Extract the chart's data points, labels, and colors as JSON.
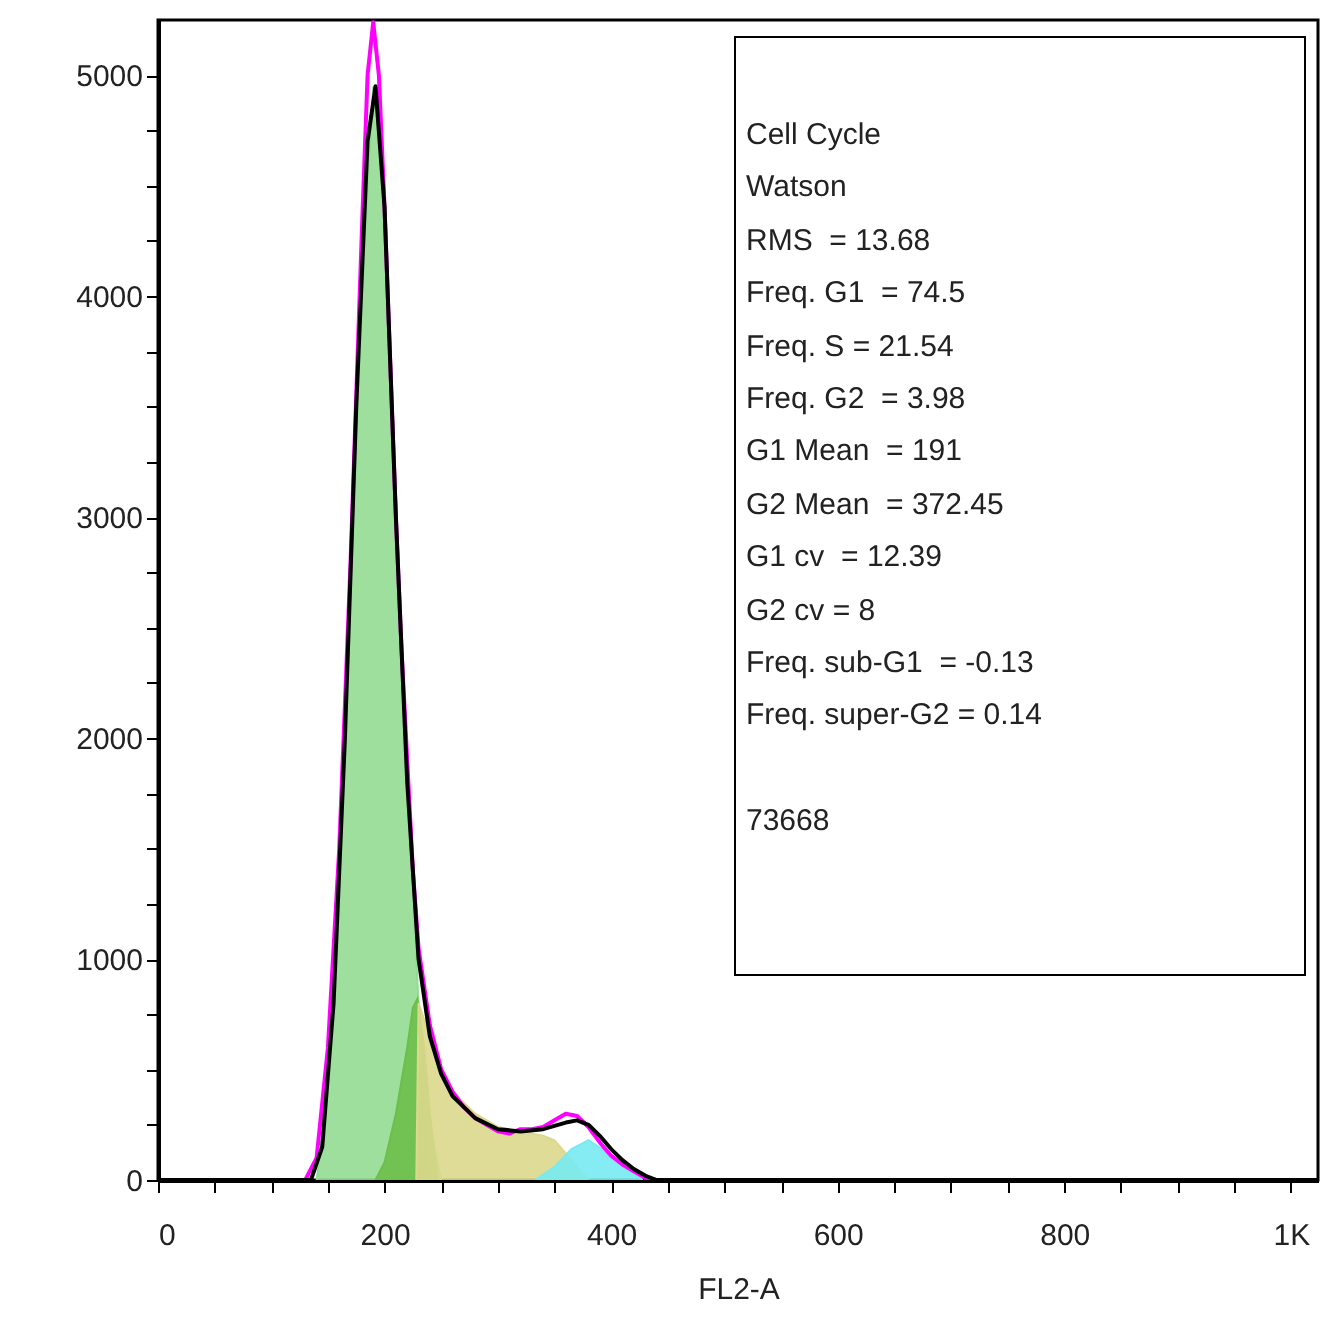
{
  "chart_data": {
    "type": "line",
    "xlabel": "FL2-A",
    "xlim": [
      0,
      1024
    ],
    "ylim": [
      0,
      5250
    ],
    "xticks": [
      0,
      {
        "value": 50,
        "label": null
      },
      {
        "value": 100,
        "label": null
      },
      {
        "value": 150,
        "label": null
      },
      200,
      {
        "value": 250,
        "label": null
      },
      {
        "value": 300,
        "label": null
      },
      {
        "value": 350,
        "label": null
      },
      400,
      {
        "value": 450,
        "label": null
      },
      {
        "value": 500,
        "label": null
      },
      {
        "value": 550,
        "label": null
      },
      600,
      {
        "value": 650,
        "label": null
      },
      {
        "value": 700,
        "label": null
      },
      {
        "value": 750,
        "label": null
      },
      800,
      {
        "value": 850,
        "label": null
      },
      {
        "value": 900,
        "label": null
      },
      {
        "value": 950,
        "label": null
      },
      {
        "value": 1000,
        "label": "1K"
      }
    ],
    "yticks": [
      0,
      {
        "value": 250,
        "label": null
      },
      {
        "value": 500,
        "label": null
      },
      {
        "value": 750,
        "label": null
      },
      1000,
      {
        "value": 1250,
        "label": null
      },
      {
        "value": 1500,
        "label": null
      },
      {
        "value": 1750,
        "label": null
      },
      2000,
      {
        "value": 2250,
        "label": null
      },
      {
        "value": 2500,
        "label": null
      },
      {
        "value": 2750,
        "label": null
      },
      3000,
      {
        "value": 3250,
        "label": null
      },
      {
        "value": 3500,
        "label": null
      },
      {
        "value": 3750,
        "label": null
      },
      4000,
      {
        "value": 4250,
        "label": null
      },
      {
        "value": 4500,
        "label": null
      },
      {
        "value": 4750,
        "label": null
      },
      5000
    ],
    "grid": false,
    "series": [
      {
        "type": "area",
        "color": "#93dc93",
        "x": [
          140,
          150,
          160,
          170,
          180,
          190,
          200,
          210,
          220,
          230,
          240,
          250
        ],
        "values": [
          0,
          400,
          1300,
          2600,
          4000,
          4950,
          4500,
          3100,
          1800,
          800,
          250,
          0
        ]
      },
      {
        "type": "area",
        "color": "#6cbf4a",
        "x": [
          192,
          200,
          210,
          220,
          225,
          229,
          235,
          240,
          247
        ],
        "values": [
          0,
          80,
          300,
          600,
          780,
          820,
          600,
          300,
          0
        ]
      },
      {
        "type": "area",
        "color": "#dcd88c",
        "x": [
          228,
          230,
          240,
          250,
          260,
          280,
          300,
          320,
          340,
          350,
          360,
          370,
          380
        ],
        "values": [
          0,
          800,
          650,
          500,
          400,
          300,
          240,
          220,
          200,
          180,
          120,
          60,
          0
        ]
      },
      {
        "type": "area",
        "color": "#78eaf2",
        "x": [
          333,
          350,
          365,
          380,
          395,
          410,
          428
        ],
        "values": [
          0,
          60,
          140,
          180,
          130,
          60,
          0
        ]
      },
      {
        "type": "line",
        "color": "#ff00ff",
        "x": [
          0,
          130,
          140,
          150,
          160,
          170,
          180,
          185,
          190,
          195,
          200,
          205,
          210,
          215,
          220,
          225,
          230,
          240,
          250,
          260,
          270,
          280,
          290,
          300,
          310,
          320,
          330,
          340,
          350,
          360,
          370,
          380,
          390,
          400,
          410,
          420,
          430,
          440,
          500,
          1024
        ],
        "values": [
          0,
          0,
          100,
          600,
          1500,
          2800,
          4300,
          5000,
          5240,
          5000,
          4400,
          3700,
          3000,
          2400,
          1900,
          1400,
          1050,
          700,
          500,
          400,
          330,
          280,
          250,
          220,
          210,
          230,
          230,
          240,
          270,
          300,
          290,
          240,
          170,
          110,
          70,
          40,
          10,
          0,
          0,
          0
        ]
      },
      {
        "type": "line",
        "color": "#000000",
        "x": [
          0,
          135,
          145,
          155,
          165,
          175,
          185,
          192,
          200,
          210,
          220,
          230,
          240,
          250,
          260,
          280,
          300,
          320,
          340,
          360,
          370,
          380,
          390,
          400,
          410,
          420,
          430,
          440,
          1024
        ],
        "values": [
          0,
          0,
          150,
          800,
          2000,
          3500,
          4700,
          4950,
          4400,
          3000,
          1800,
          1000,
          650,
          480,
          380,
          280,
          230,
          220,
          230,
          260,
          270,
          250,
          200,
          140,
          90,
          50,
          20,
          0,
          0
        ]
      }
    ],
    "annotations": [
      "Cell Cycle",
      "Watson",
      "RMS  = 13.68",
      "Freq. G1  = 74.5",
      "Freq. S = 21.54",
      "Freq. G2  = 3.98",
      "G1 Mean  = 191",
      "G2 Mean  = 372.45",
      "G1 cv  = 12.39",
      "G2 cv = 8",
      "Freq. sub-G1  = -0.13",
      "Freq. super-G2 = 0.14",
      "73668"
    ]
  }
}
